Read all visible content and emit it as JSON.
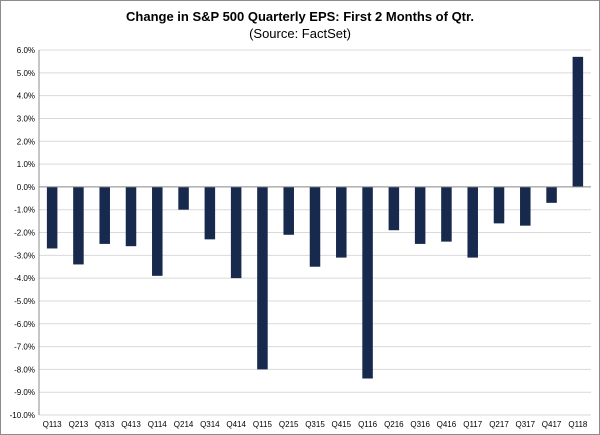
{
  "chart_data": {
    "type": "bar",
    "title": "Change in S&P 500 Quarterly EPS: First 2 Months of Qtr.",
    "subtitle": "(Source: FactSet)",
    "xlabel": "",
    "ylabel": "",
    "categories": [
      "Q113",
      "Q213",
      "Q313",
      "Q413",
      "Q114",
      "Q214",
      "Q314",
      "Q414",
      "Q115",
      "Q215",
      "Q315",
      "Q415",
      "Q116",
      "Q216",
      "Q316",
      "Q416",
      "Q117",
      "Q217",
      "Q317",
      "Q417",
      "Q118"
    ],
    "values": [
      -2.7,
      -3.4,
      -2.5,
      -2.6,
      -3.9,
      -1.0,
      -2.3,
      -4.0,
      -8.0,
      -2.1,
      -3.5,
      -3.1,
      -8.4,
      -1.9,
      -2.5,
      -2.4,
      -3.1,
      -1.6,
      -1.7,
      -0.7,
      5.7
    ],
    "ylim": [
      -10.0,
      6.0
    ],
    "yticks": [
      "6.0%",
      "5.0%",
      "4.0%",
      "3.0%",
      "2.0%",
      "1.0%",
      "0.0%",
      "-1.0%",
      "-2.0%",
      "-3.0%",
      "-4.0%",
      "-5.0%",
      "-6.0%",
      "-7.0%",
      "-8.0%",
      "-9.0%",
      "-10.0%"
    ],
    "ytick_values": [
      6,
      5,
      4,
      3,
      2,
      1,
      0,
      -1,
      -2,
      -3,
      -4,
      -5,
      -6,
      -7,
      -8,
      -9,
      -10
    ],
    "grid": true,
    "legend": "none",
    "bar_color": "#17294d",
    "grid_color": "#d9d9d9"
  }
}
